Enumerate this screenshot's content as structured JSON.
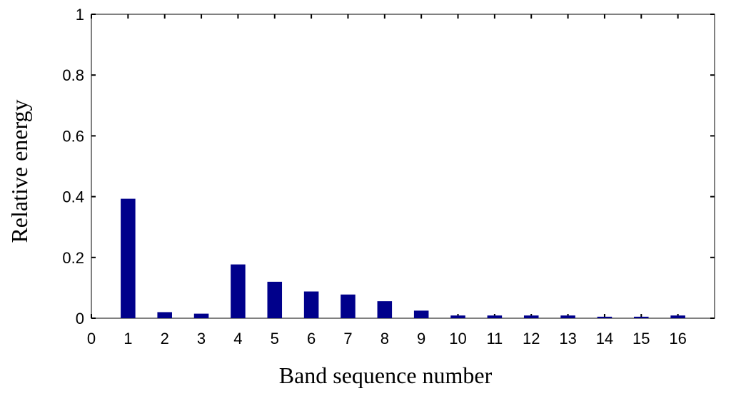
{
  "chart_data": {
    "type": "bar",
    "title": "",
    "xlabel": "Band sequence number",
    "ylabel": "Relative energy",
    "xlim": [
      0,
      17
    ],
    "ylim": [
      0,
      1
    ],
    "x_ticks": [
      0,
      1,
      2,
      3,
      4,
      5,
      6,
      7,
      8,
      9,
      10,
      11,
      12,
      13,
      14,
      15,
      16
    ],
    "y_ticks": [
      0,
      0.2,
      0.4,
      0.6,
      0.8,
      1
    ],
    "y_tick_labels": [
      "0",
      "0.2",
      "0.4",
      "0.6",
      "0.8",
      "1"
    ],
    "categories": [
      1,
      2,
      3,
      4,
      5,
      6,
      7,
      8,
      9,
      10,
      11,
      12,
      13,
      14,
      15,
      16
    ],
    "values": [
      0.393,
      0.02,
      0.015,
      0.177,
      0.12,
      0.088,
      0.078,
      0.056,
      0.025,
      0.009,
      0.009,
      0.009,
      0.009,
      0.005,
      0.005,
      0.009
    ],
    "bar_color": "#00008B",
    "grid": false
  }
}
